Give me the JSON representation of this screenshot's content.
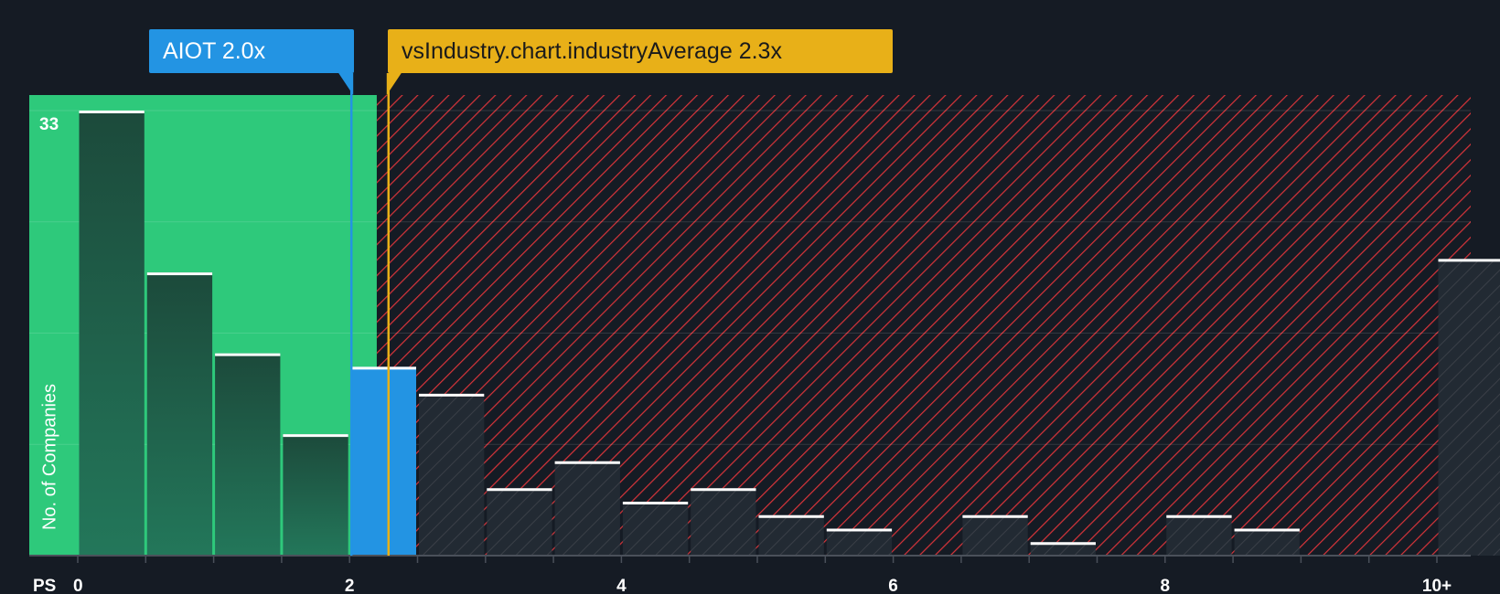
{
  "chart_data": {
    "type": "bar",
    "title": "",
    "xlabel": "PS",
    "ylabel": "No. of Companies",
    "ylim": [
      0,
      33
    ],
    "y_max_label": "33",
    "x_ticks": [
      "0",
      "2",
      "4",
      "6",
      "8",
      "10+"
    ],
    "bins": [
      {
        "start": 0.0,
        "end": 0.5,
        "value": 33
      },
      {
        "start": 0.5,
        "end": 1.0,
        "value": 21
      },
      {
        "start": 1.0,
        "end": 1.5,
        "value": 15
      },
      {
        "start": 1.5,
        "end": 2.0,
        "value": 9
      },
      {
        "start": 2.0,
        "end": 2.5,
        "value": 14,
        "highlight": true
      },
      {
        "start": 2.5,
        "end": 3.0,
        "value": 12
      },
      {
        "start": 3.0,
        "end": 3.5,
        "value": 5
      },
      {
        "start": 3.5,
        "end": 4.0,
        "value": 7
      },
      {
        "start": 4.0,
        "end": 4.5,
        "value": 4
      },
      {
        "start": 4.5,
        "end": 5.0,
        "value": 5
      },
      {
        "start": 5.0,
        "end": 5.5,
        "value": 3
      },
      {
        "start": 5.5,
        "end": 6.0,
        "value": 2
      },
      {
        "start": 6.0,
        "end": 6.5,
        "value": 0
      },
      {
        "start": 6.5,
        "end": 7.0,
        "value": 3
      },
      {
        "start": 7.0,
        "end": 7.5,
        "value": 1
      },
      {
        "start": 7.5,
        "end": 8.0,
        "value": 0
      },
      {
        "start": 8.0,
        "end": 8.5,
        "value": 3
      },
      {
        "start": 8.5,
        "end": 9.0,
        "value": 2
      },
      {
        "start": 9.0,
        "end": 9.5,
        "value": 0
      },
      {
        "start": 9.5,
        "end": 10.0,
        "value": 0
      },
      {
        "start": 10.0,
        "end": 10.5,
        "value": 22
      }
    ],
    "company": {
      "label": "AIOT 2.0x",
      "value": 2.0
    },
    "industry_average": {
      "label": "vsIndustry.chart.industryAverage 2.3x",
      "value": 2.3
    },
    "fair_zone_end": 2.2
  },
  "colors": {
    "background": "#151b24",
    "fair_zone": "#2ec97b",
    "bar_dark": "#1c4a3b",
    "bar_highlight": "#2394e3",
    "overvalued_hatch": "#d8343a",
    "company_line": "#2394e3",
    "industry_line": "#e8b018"
  }
}
